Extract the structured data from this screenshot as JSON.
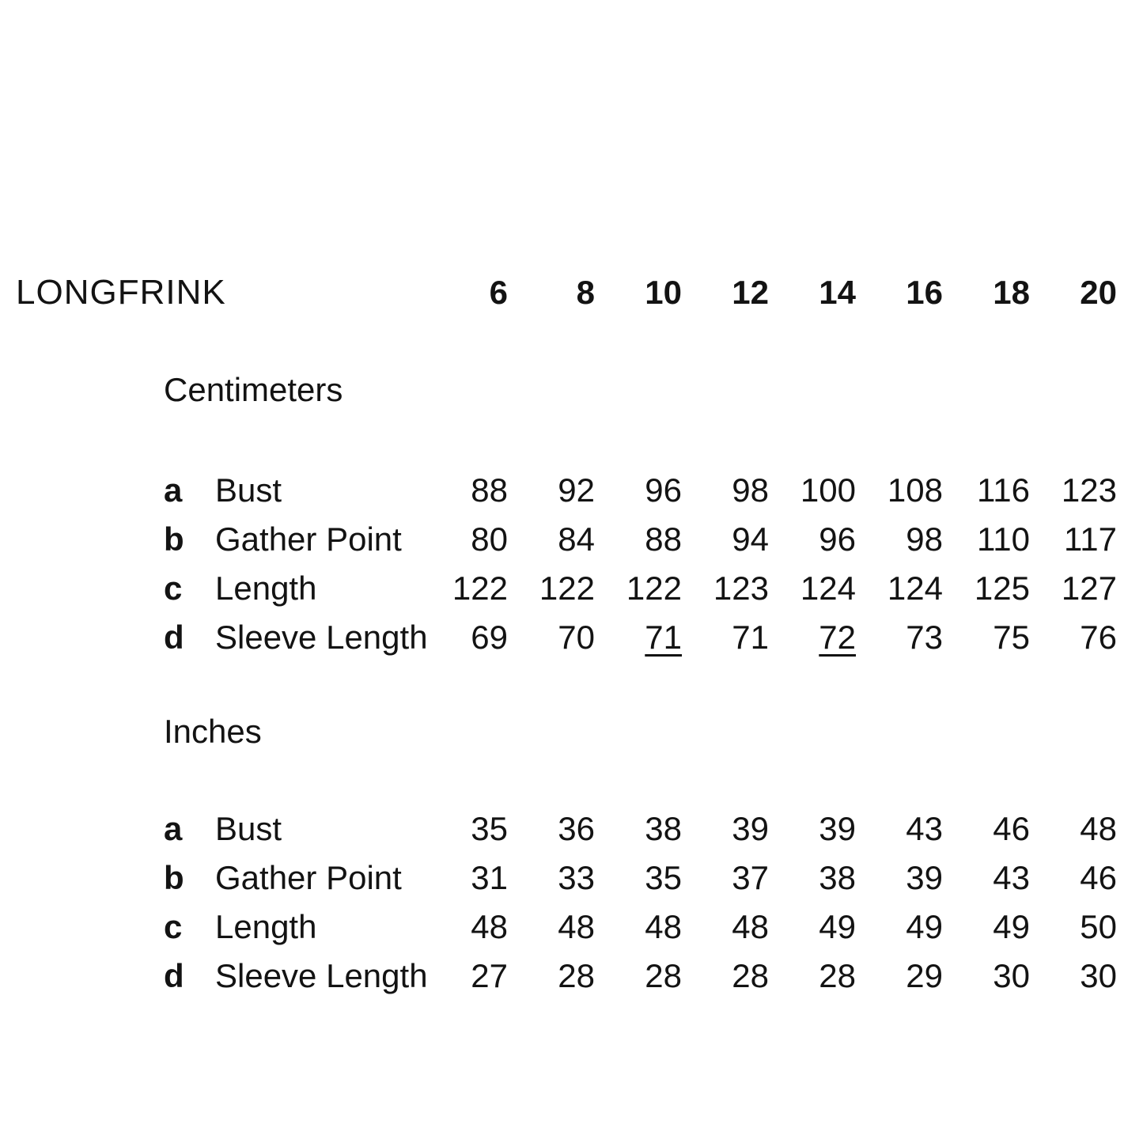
{
  "title": "LONGFRINK",
  "colors": {
    "background": "#ffffff",
    "text": "#131313"
  },
  "sizes": [
    "6",
    "8",
    "10",
    "12",
    "14",
    "16",
    "18",
    "20"
  ],
  "sections": [
    {
      "unit_label": "Centimeters",
      "rows": [
        {
          "letter": "a",
          "label": "Bust",
          "values": [
            "88",
            "92",
            "96",
            "98",
            "100",
            "108",
            "116",
            "123"
          ]
        },
        {
          "letter": "b",
          "label": "Gather Point",
          "values": [
            "80",
            "84",
            "88",
            "94",
            "96",
            "98",
            "110",
            "117"
          ]
        },
        {
          "letter": "c",
          "label": "Length",
          "values": [
            "122",
            "122",
            "122",
            "123",
            "124",
            "124",
            "125",
            "127"
          ]
        },
        {
          "letter": "d",
          "label": "Sleeve Length",
          "values": [
            "69",
            "70",
            "71",
            "71",
            "72",
            "73",
            "75",
            "76"
          ],
          "underlined_value_indices": [
            2,
            4
          ]
        }
      ]
    },
    {
      "unit_label": "Inches",
      "rows": [
        {
          "letter": "a",
          "label": "Bust",
          "values": [
            "35",
            "36",
            "38",
            "39",
            "39",
            "43",
            "46",
            "48"
          ]
        },
        {
          "letter": "b",
          "label": "Gather Point",
          "values": [
            "31",
            "33",
            "35",
            "37",
            "38",
            "39",
            "43",
            "46"
          ]
        },
        {
          "letter": "c",
          "label": "Length",
          "values": [
            "48",
            "48",
            "48",
            "48",
            "49",
            "49",
            "49",
            "50"
          ]
        },
        {
          "letter": "d",
          "label": "Sleeve Length",
          "values": [
            "27",
            "28",
            "28",
            "28",
            "28",
            "29",
            "30",
            "30"
          ]
        }
      ]
    }
  ],
  "chart_data": {
    "type": "table",
    "title": "LONGFRINK",
    "columns": [
      "6",
      "8",
      "10",
      "12",
      "14",
      "16",
      "18",
      "20"
    ],
    "groups": [
      {
        "name": "Centimeters",
        "rows": [
          {
            "id": "a",
            "label": "Bust",
            "values": [
              88,
              92,
              96,
              98,
              100,
              108,
              116,
              123
            ]
          },
          {
            "id": "b",
            "label": "Gather Point",
            "values": [
              80,
              84,
              88,
              94,
              96,
              98,
              110,
              117
            ]
          },
          {
            "id": "c",
            "label": "Length",
            "values": [
              122,
              122,
              122,
              123,
              124,
              124,
              125,
              127
            ]
          },
          {
            "id": "d",
            "label": "Sleeve Length",
            "values": [
              69,
              70,
              71,
              71,
              72,
              73,
              75,
              76
            ]
          }
        ]
      },
      {
        "name": "Inches",
        "rows": [
          {
            "id": "a",
            "label": "Bust",
            "values": [
              35,
              36,
              38,
              39,
              39,
              43,
              46,
              48
            ]
          },
          {
            "id": "b",
            "label": "Gather Point",
            "values": [
              31,
              33,
              35,
              37,
              38,
              39,
              43,
              46
            ]
          },
          {
            "id": "c",
            "label": "Length",
            "values": [
              48,
              48,
              48,
              48,
              49,
              49,
              49,
              50
            ]
          },
          {
            "id": "d",
            "label": "Sleeve Length",
            "values": [
              27,
              28,
              28,
              28,
              28,
              29,
              30,
              30
            ]
          }
        ]
      }
    ]
  }
}
